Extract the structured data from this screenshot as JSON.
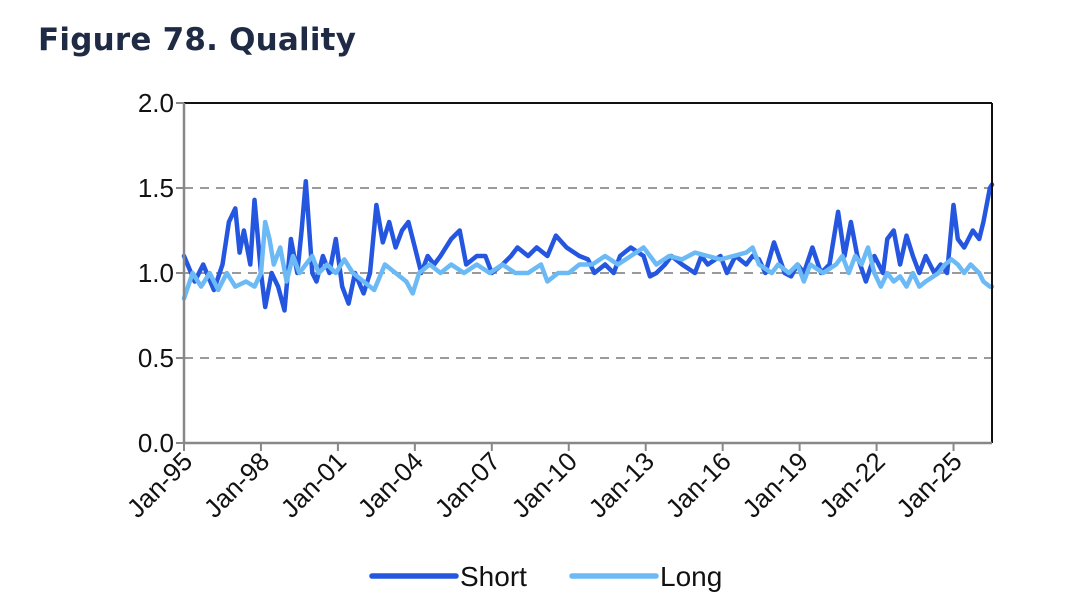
{
  "title": "Figure 78. Quality",
  "chart_data": {
    "type": "line",
    "ylim": [
      0,
      2
    ],
    "y_ticks": [
      "0.0",
      "0.5",
      "1.0",
      "1.5",
      "2.0"
    ],
    "x_range": [
      "Jan-95",
      "Jul-26"
    ],
    "x_ticks": [
      "Jan-95",
      "Jan-98",
      "Jan-01",
      "Jan-04",
      "Jan-07",
      "Jan-10",
      "Jan-13",
      "Jan-16",
      "Jan-19",
      "Jan-22",
      "Jan-25"
    ],
    "grid": "horizontal dashed",
    "legend_position": "bottom",
    "colors": {
      "Short": "#2456e0",
      "Long": "#6bbaf5",
      "gridline": "#9a9a9a"
    },
    "series": [
      {
        "name": "Short",
        "points": [
          [
            "1995-01",
            1.1
          ],
          [
            "1995-06",
            0.95
          ],
          [
            "1995-10",
            1.05
          ],
          [
            "1996-03",
            0.9
          ],
          [
            "1996-07",
            1.05
          ],
          [
            "1996-10",
            1.3
          ],
          [
            "1997-01",
            1.38
          ],
          [
            "1997-03",
            1.12
          ],
          [
            "1997-05",
            1.25
          ],
          [
            "1997-08",
            1.05
          ],
          [
            "1997-10",
            1.43
          ],
          [
            "1998-01",
            1.0
          ],
          [
            "1998-03",
            0.8
          ],
          [
            "1998-06",
            1.0
          ],
          [
            "1998-09",
            0.92
          ],
          [
            "1998-12",
            0.78
          ],
          [
            "1999-03",
            1.2
          ],
          [
            "1999-06",
            1.0
          ],
          [
            "1999-08",
            1.25
          ],
          [
            "1999-10",
            1.54
          ],
          [
            "2000-01",
            1.0
          ],
          [
            "2000-03",
            0.95
          ],
          [
            "2000-06",
            1.1
          ],
          [
            "2000-09",
            1.0
          ],
          [
            "2000-12",
            1.2
          ],
          [
            "2001-03",
            0.92
          ],
          [
            "2001-06",
            0.82
          ],
          [
            "2001-09",
            1.0
          ],
          [
            "2002-01",
            0.88
          ],
          [
            "2002-04",
            1.0
          ],
          [
            "2002-07",
            1.4
          ],
          [
            "2002-10",
            1.18
          ],
          [
            "2003-01",
            1.3
          ],
          [
            "2003-04",
            1.15
          ],
          [
            "2003-07",
            1.25
          ],
          [
            "2003-10",
            1.3
          ],
          [
            "2004-01",
            1.15
          ],
          [
            "2004-04",
            1.0
          ],
          [
            "2004-07",
            1.1
          ],
          [
            "2004-10",
            1.05
          ],
          [
            "2005-01",
            1.1
          ],
          [
            "2005-06",
            1.2
          ],
          [
            "2005-10",
            1.25
          ],
          [
            "2006-01",
            1.05
          ],
          [
            "2006-06",
            1.1
          ],
          [
            "2006-10",
            1.1
          ],
          [
            "2007-01",
            1.0
          ],
          [
            "2007-06",
            1.05
          ],
          [
            "2007-10",
            1.1
          ],
          [
            "2008-01",
            1.15
          ],
          [
            "2008-06",
            1.1
          ],
          [
            "2008-10",
            1.15
          ],
          [
            "2009-03",
            1.1
          ],
          [
            "2009-07",
            1.22
          ],
          [
            "2009-12",
            1.15
          ],
          [
            "2010-06",
            1.1
          ],
          [
            "2010-10",
            1.08
          ],
          [
            "2011-01",
            1.0
          ],
          [
            "2011-06",
            1.05
          ],
          [
            "2011-10",
            1.0
          ],
          [
            "2012-01",
            1.1
          ],
          [
            "2012-06",
            1.15
          ],
          [
            "2012-12",
            1.1
          ],
          [
            "2013-03",
            0.98
          ],
          [
            "2013-06",
            1.0
          ],
          [
            "2013-10",
            1.05
          ],
          [
            "2014-01",
            1.1
          ],
          [
            "2014-06",
            1.05
          ],
          [
            "2014-12",
            1.0
          ],
          [
            "2015-03",
            1.1
          ],
          [
            "2015-06",
            1.05
          ],
          [
            "2015-12",
            1.1
          ],
          [
            "2016-03",
            1.0
          ],
          [
            "2016-07",
            1.1
          ],
          [
            "2016-12",
            1.05
          ],
          [
            "2017-03",
            1.1
          ],
          [
            "2017-06",
            1.08
          ],
          [
            "2017-09",
            1.0
          ],
          [
            "2018-01",
            1.18
          ],
          [
            "2018-06",
            1.0
          ],
          [
            "2018-09",
            0.98
          ],
          [
            "2018-12",
            1.05
          ],
          [
            "2019-03",
            1.0
          ],
          [
            "2019-07",
            1.15
          ],
          [
            "2019-11",
            1.0
          ],
          [
            "2020-03",
            1.05
          ],
          [
            "2020-07",
            1.36
          ],
          [
            "2020-10",
            1.1
          ],
          [
            "2021-01",
            1.3
          ],
          [
            "2021-04",
            1.1
          ],
          [
            "2021-08",
            0.95
          ],
          [
            "2021-12",
            1.1
          ],
          [
            "2022-04",
            1.0
          ],
          [
            "2022-06",
            1.2
          ],
          [
            "2022-09",
            1.25
          ],
          [
            "2022-12",
            1.05
          ],
          [
            "2023-03",
            1.22
          ],
          [
            "2023-06",
            1.1
          ],
          [
            "2023-09",
            1.0
          ],
          [
            "2023-12",
            1.1
          ],
          [
            "2024-04",
            1.0
          ],
          [
            "2024-07",
            1.05
          ],
          [
            "2024-10",
            1.0
          ],
          [
            "2025-01",
            1.4
          ],
          [
            "2025-03",
            1.2
          ],
          [
            "2025-06",
            1.15
          ],
          [
            "2025-10",
            1.25
          ],
          [
            "2026-01",
            1.2
          ],
          [
            "2026-03",
            1.3
          ],
          [
            "2026-06",
            1.5
          ],
          [
            "2026-07",
            1.52
          ]
        ]
      },
      {
        "name": "Long",
        "points": [
          [
            "1995-01",
            0.85
          ],
          [
            "1995-05",
            1.0
          ],
          [
            "1995-09",
            0.92
          ],
          [
            "1996-01",
            1.0
          ],
          [
            "1996-05",
            0.9
          ],
          [
            "1996-09",
            1.0
          ],
          [
            "1997-01",
            0.92
          ],
          [
            "1997-06",
            0.95
          ],
          [
            "1997-10",
            0.92
          ],
          [
            "1998-01",
            1.0
          ],
          [
            "1998-03",
            1.3
          ],
          [
            "1998-05",
            1.2
          ],
          [
            "1998-07",
            1.05
          ],
          [
            "1998-10",
            1.15
          ],
          [
            "1999-01",
            0.95
          ],
          [
            "1999-04",
            1.1
          ],
          [
            "1999-07",
            1.0
          ],
          [
            "1999-10",
            1.05
          ],
          [
            "2000-01",
            1.1
          ],
          [
            "2000-04",
            1.0
          ],
          [
            "2000-08",
            1.05
          ],
          [
            "2000-12",
            1.0
          ],
          [
            "2001-04",
            1.08
          ],
          [
            "2001-08",
            1.0
          ],
          [
            "2002-01",
            0.95
          ],
          [
            "2002-06",
            0.9
          ],
          [
            "2002-11",
            1.05
          ],
          [
            "2003-04",
            1.0
          ],
          [
            "2003-09",
            0.95
          ],
          [
            "2003-12",
            0.88
          ],
          [
            "2004-03",
            1.0
          ],
          [
            "2004-08",
            1.05
          ],
          [
            "2005-01",
            1.0
          ],
          [
            "2005-06",
            1.05
          ],
          [
            "2005-12",
            1.0
          ],
          [
            "2006-06",
            1.05
          ],
          [
            "2006-12",
            1.0
          ],
          [
            "2007-06",
            1.05
          ],
          [
            "2007-12",
            1.0
          ],
          [
            "2008-06",
            1.0
          ],
          [
            "2008-12",
            1.05
          ],
          [
            "2009-03",
            0.95
          ],
          [
            "2009-08",
            1.0
          ],
          [
            "2010-01",
            1.0
          ],
          [
            "2010-06",
            1.05
          ],
          [
            "2010-12",
            1.05
          ],
          [
            "2011-06",
            1.1
          ],
          [
            "2011-12",
            1.05
          ],
          [
            "2012-06",
            1.1
          ],
          [
            "2012-12",
            1.15
          ],
          [
            "2013-06",
            1.05
          ],
          [
            "2013-12",
            1.1
          ],
          [
            "2014-06",
            1.08
          ],
          [
            "2014-12",
            1.12
          ],
          [
            "2015-06",
            1.1
          ],
          [
            "2015-12",
            1.08
          ],
          [
            "2016-06",
            1.1
          ],
          [
            "2016-12",
            1.12
          ],
          [
            "2017-03",
            1.15
          ],
          [
            "2017-06",
            1.05
          ],
          [
            "2017-12",
            1.0
          ],
          [
            "2018-03",
            1.05
          ],
          [
            "2018-08",
            1.0
          ],
          [
            "2018-12",
            1.05
          ],
          [
            "2019-03",
            0.95
          ],
          [
            "2019-06",
            1.05
          ],
          [
            "2019-12",
            1.0
          ],
          [
            "2020-06",
            1.05
          ],
          [
            "2020-09",
            1.1
          ],
          [
            "2020-12",
            1.0
          ],
          [
            "2021-03",
            1.1
          ],
          [
            "2021-06",
            1.05
          ],
          [
            "2021-09",
            1.15
          ],
          [
            "2021-12",
            1.0
          ],
          [
            "2022-03",
            0.92
          ],
          [
            "2022-06",
            1.0
          ],
          [
            "2022-09",
            0.95
          ],
          [
            "2022-12",
            0.98
          ],
          [
            "2023-03",
            0.92
          ],
          [
            "2023-06",
            1.0
          ],
          [
            "2023-09",
            0.92
          ],
          [
            "2023-12",
            0.95
          ],
          [
            "2024-06",
            1.0
          ],
          [
            "2024-09",
            1.05
          ],
          [
            "2024-12",
            1.08
          ],
          [
            "2025-03",
            1.05
          ],
          [
            "2025-06",
            1.0
          ],
          [
            "2025-09",
            1.05
          ],
          [
            "2026-01",
            1.0
          ],
          [
            "2026-03",
            0.95
          ],
          [
            "2026-06",
            0.92
          ],
          [
            "2026-07",
            0.92
          ]
        ]
      }
    ]
  }
}
